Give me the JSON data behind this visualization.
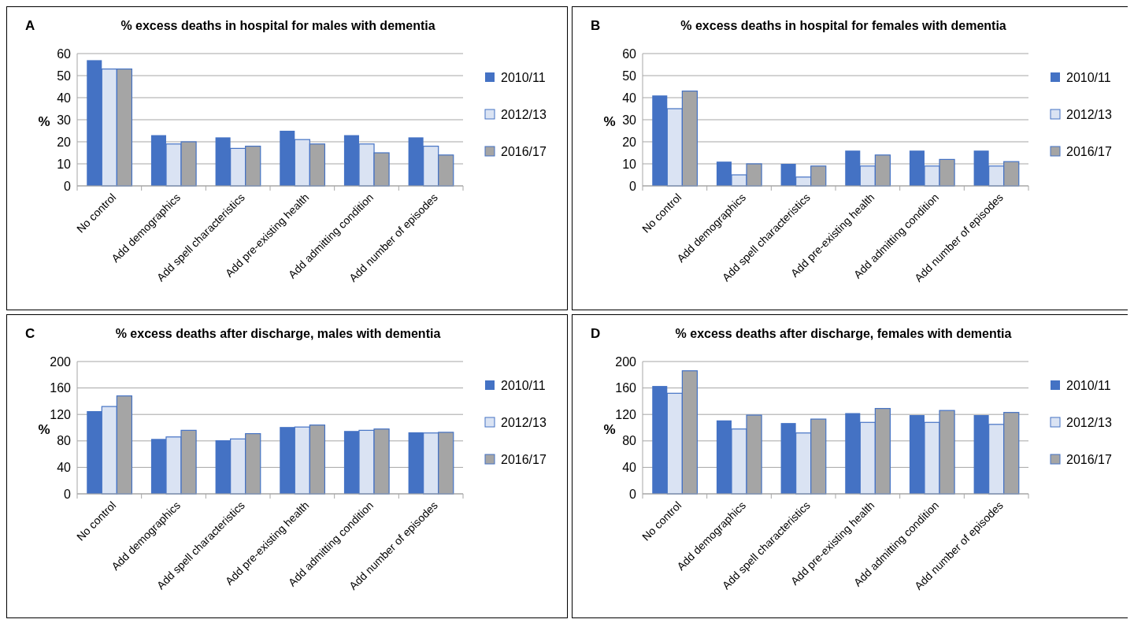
{
  "chart_data": [
    {
      "type": "bar",
      "title": "% excess deaths in hospital for males with dementia",
      "ylabel": "%",
      "annotations": [
        "A"
      ],
      "categories": [
        "No control",
        "Add demographics",
        "Add spell characteristics",
        "Add pre-existing health",
        "Add admitting condition",
        "Add number of episodes"
      ],
      "series": [
        {
          "name": "2010/11",
          "color": "#4472c4",
          "values": [
            57,
            23,
            22,
            25,
            23,
            22
          ]
        },
        {
          "name": "2012/13",
          "color": "#dae3f3",
          "values": [
            53,
            19,
            17,
            21,
            19,
            18
          ]
        },
        {
          "name": "2016/17",
          "color": "#a5a5a5",
          "values": [
            53,
            20,
            18,
            19,
            15,
            14
          ]
        }
      ],
      "ylim": [
        0,
        60
      ],
      "yticks": [
        0,
        10,
        20,
        30,
        40,
        50,
        60
      ],
      "grid": "y",
      "legend": "right"
    },
    {
      "type": "bar",
      "title": "% excess deaths in hospital for females with dementia",
      "ylabel": "%",
      "annotations": [
        "B"
      ],
      "categories": [
        "No control",
        "Add demographics",
        "Add spell characteristics",
        "Add pre-existing health",
        "Add admitting condition",
        "Add number of episodes"
      ],
      "series": [
        {
          "name": "2010/11",
          "color": "#4472c4",
          "values": [
            41,
            11,
            10,
            16,
            16,
            16
          ]
        },
        {
          "name": "2012/13",
          "color": "#dae3f3",
          "values": [
            35,
            5,
            4,
            9,
            9,
            9
          ]
        },
        {
          "name": "2016/17",
          "color": "#a5a5a5",
          "values": [
            43,
            10,
            9,
            14,
            12,
            11
          ]
        }
      ],
      "ylim": [
        0,
        60
      ],
      "yticks": [
        0,
        10,
        20,
        30,
        40,
        50,
        60
      ],
      "grid": "y",
      "legend": "right"
    },
    {
      "type": "bar",
      "title": "% excess deaths after discharge, males with dementia",
      "ylabel": "%",
      "annotations": [
        "C"
      ],
      "categories": [
        "No control",
        "Add demographics",
        "Add spell characteristics",
        "Add pre-existing health",
        "Add admitting condition",
        "Add number of episodes"
      ],
      "series": [
        {
          "name": "2010/11",
          "color": "#4472c4",
          "values": [
            125,
            83,
            81,
            101,
            95,
            93
          ]
        },
        {
          "name": "2012/13",
          "color": "#dae3f3",
          "values": [
            132,
            86,
            83,
            101,
            96,
            92
          ]
        },
        {
          "name": "2016/17",
          "color": "#a5a5a5",
          "values": [
            148,
            96,
            91,
            104,
            98,
            93
          ]
        }
      ],
      "ylim": [
        0,
        200
      ],
      "yticks": [
        0,
        40,
        80,
        120,
        160,
        200
      ],
      "grid": "y",
      "legend": "right"
    },
    {
      "type": "bar",
      "title": "% excess deaths after discharge, females with dementia",
      "ylabel": "%",
      "annotations": [
        "D"
      ],
      "categories": [
        "No control",
        "Add demographics",
        "Add spell characteristics",
        "Add pre-existing health",
        "Add admitting condition",
        "Add number of episodes"
      ],
      "series": [
        {
          "name": "2010/11",
          "color": "#4472c4",
          "values": [
            163,
            111,
            107,
            122,
            119,
            119
          ]
        },
        {
          "name": "2012/13",
          "color": "#dae3f3",
          "values": [
            152,
            98,
            92,
            108,
            108,
            105
          ]
        },
        {
          "name": "2016/17",
          "color": "#a5a5a5",
          "values": [
            186,
            119,
            113,
            129,
            126,
            123
          ]
        }
      ],
      "ylim": [
        0,
        200
      ],
      "yticks": [
        0,
        40,
        80,
        120,
        160,
        200
      ],
      "grid": "y",
      "legend": "right"
    }
  ]
}
